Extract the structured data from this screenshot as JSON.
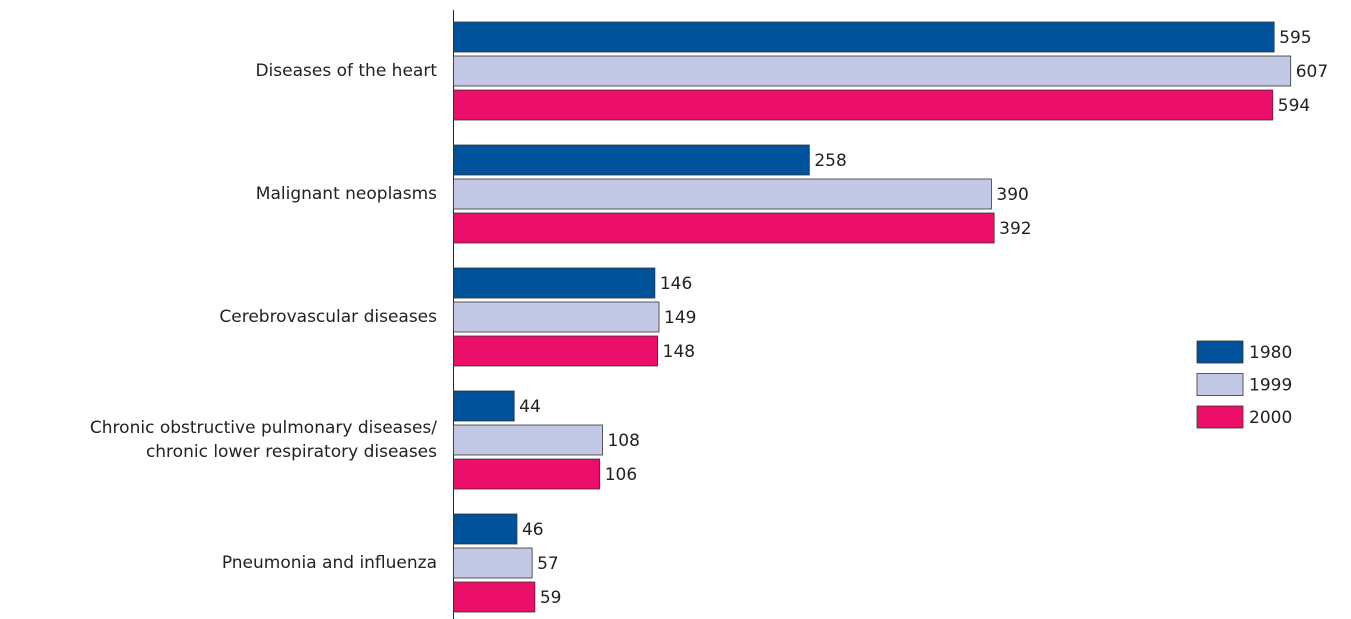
{
  "chart_data": {
    "type": "bar",
    "orientation": "horizontal",
    "categories": [
      "Diseases of the heart",
      "Malignant neoplasms",
      "Cerebrovascular diseases",
      "Chronic obstructive pulmonary diseases/\nchronic lower respiratory diseases",
      "Pneumonia and influenza"
    ],
    "series": [
      {
        "name": "1980",
        "color": "#00529b",
        "values": [
          595,
          258,
          146,
          44,
          46
        ]
      },
      {
        "name": "1999",
        "color": "#c3c8e4",
        "values": [
          607,
          390,
          149,
          108,
          57
        ]
      },
      {
        "name": "2000",
        "color": "#ec0f6a",
        "values": [
          594,
          392,
          148,
          106,
          59
        ]
      }
    ],
    "xlim": [
      0,
      650
    ],
    "legend": "right"
  }
}
